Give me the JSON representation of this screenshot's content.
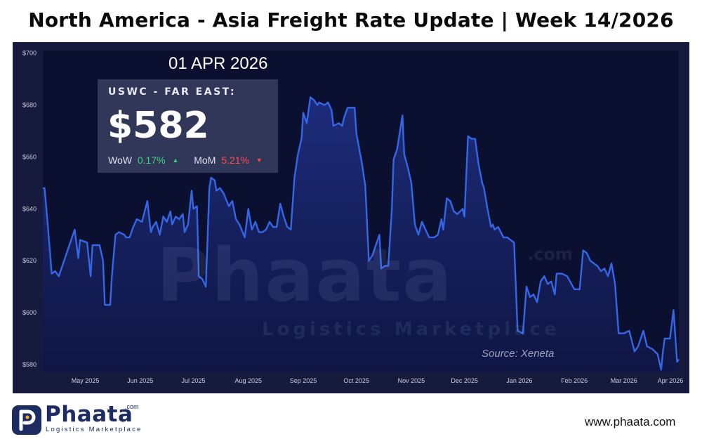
{
  "title": "North America - Asia Freight Rate Update | Week 14/2026",
  "date_label": "01 APR 2026",
  "info_box": {
    "route": "USWC - FAR EAST:",
    "price": "$582",
    "wow_label": "WoW",
    "wow_value": "0.17%",
    "wow_icon": "triangle-up-icon",
    "mom_label": "MoM",
    "mom_value": "5.21%",
    "mom_icon": "triangle-down-icon"
  },
  "source": "Source: Xeneta",
  "watermark": {
    "brand": "Phaata",
    "tagline": "Logistics Marketplace",
    "suffix": ".com"
  },
  "footer": {
    "logo_text": "Phaata",
    "logo_com": ".com",
    "logo_tagline": "Logistics Marketplace",
    "website": "www.phaata.com"
  },
  "colors": {
    "panel": "#161a3d",
    "plot_bg": "#0b1030",
    "line": "#3566e6",
    "area": "#1a2a6e",
    "positive": "#3fd07a",
    "negative": "#ff4a4a"
  },
  "chart_data": {
    "type": "area",
    "xlabel": "",
    "ylabel": "",
    "ylim": [
      577,
      701
    ],
    "xlim": [
      "2025-04-07",
      "2026-04-01"
    ],
    "grid": false,
    "y_ticks": [
      "$580",
      "$600",
      "$620",
      "$640",
      "$660",
      "$680",
      "$700"
    ],
    "y_tick_values": [
      580,
      600,
      620,
      640,
      660,
      680,
      700
    ],
    "x_ticks": [
      "May 2025",
      "Jun 2025",
      "Jul 2025",
      "Aug 2025",
      "Sep 2025",
      "Oct 2025",
      "Nov 2025",
      "Dec 2025",
      "Jan 2026",
      "Feb 2026",
      "Mar 2026",
      "Apr 2026"
    ],
    "x_tick_dates": [
      "2025-05-01",
      "2025-06-01",
      "2025-07-01",
      "2025-08-01",
      "2025-09-01",
      "2025-10-01",
      "2025-11-01",
      "2025-12-01",
      "2026-01-01",
      "2026-02-01",
      "2026-03-01",
      "2026-04-01"
    ],
    "series": [
      {
        "points": [
          [
            "2025-04-07",
            648
          ],
          [
            "2025-04-08",
            648
          ],
          [
            "2025-04-10",
            632
          ],
          [
            "2025-04-12",
            615
          ],
          [
            "2025-04-14",
            616
          ],
          [
            "2025-04-16",
            614
          ],
          [
            "2025-04-20",
            622
          ],
          [
            "2025-04-24",
            630
          ],
          [
            "2025-04-25",
            632
          ],
          [
            "2025-04-27",
            621
          ],
          [
            "2025-04-28",
            628
          ],
          [
            "2025-05-02",
            627
          ],
          [
            "2025-05-04",
            614
          ],
          [
            "2025-05-05",
            626
          ],
          [
            "2025-05-09",
            626
          ],
          [
            "2025-05-11",
            620
          ],
          [
            "2025-05-12",
            603
          ],
          [
            "2025-05-15",
            603
          ],
          [
            "2025-05-16",
            614
          ],
          [
            "2025-05-18",
            630
          ],
          [
            "2025-05-20",
            631
          ],
          [
            "2025-05-23",
            630
          ],
          [
            "2025-05-24",
            629
          ],
          [
            "2025-05-26",
            629
          ],
          [
            "2025-05-28",
            633
          ],
          [
            "2025-05-30",
            636
          ],
          [
            "2025-06-02",
            635
          ],
          [
            "2025-06-05",
            643
          ],
          [
            "2025-06-07",
            631
          ],
          [
            "2025-06-08",
            633
          ],
          [
            "2025-06-10",
            635
          ],
          [
            "2025-06-12",
            630
          ],
          [
            "2025-06-14",
            637
          ],
          [
            "2025-06-16",
            635
          ],
          [
            "2025-06-18",
            639
          ],
          [
            "2025-06-19",
            634
          ],
          [
            "2025-06-21",
            637
          ],
          [
            "2025-06-23",
            636
          ],
          [
            "2025-06-25",
            638
          ],
          [
            "2025-06-26",
            631
          ],
          [
            "2025-06-28",
            634
          ],
          [
            "2025-06-30",
            647
          ],
          [
            "2025-07-01",
            640
          ],
          [
            "2025-07-03",
            641
          ],
          [
            "2025-07-04",
            614
          ],
          [
            "2025-07-06",
            613
          ],
          [
            "2025-07-08",
            610
          ],
          [
            "2025-07-10",
            648
          ],
          [
            "2025-07-11",
            652
          ],
          [
            "2025-07-13",
            651
          ],
          [
            "2025-07-14",
            647
          ],
          [
            "2025-07-16",
            648
          ],
          [
            "2025-07-18",
            646
          ],
          [
            "2025-07-21",
            641
          ],
          [
            "2025-07-23",
            643
          ],
          [
            "2025-07-25",
            636
          ],
          [
            "2025-07-27",
            634
          ],
          [
            "2025-07-30",
            629
          ],
          [
            "2025-08-01",
            640
          ],
          [
            "2025-08-03",
            632
          ],
          [
            "2025-08-05",
            635
          ],
          [
            "2025-08-07",
            631
          ],
          [
            "2025-08-09",
            631
          ],
          [
            "2025-08-11",
            632
          ],
          [
            "2025-08-13",
            635
          ],
          [
            "2025-08-15",
            633
          ],
          [
            "2025-08-17",
            633
          ],
          [
            "2025-08-19",
            642
          ],
          [
            "2025-08-21",
            637
          ],
          [
            "2025-08-23",
            633
          ],
          [
            "2025-08-25",
            632
          ],
          [
            "2025-08-27",
            652
          ],
          [
            "2025-08-29",
            661
          ],
          [
            "2025-08-31",
            667
          ],
          [
            "2025-09-01",
            677
          ],
          [
            "2025-09-03",
            673
          ],
          [
            "2025-09-05",
            683
          ],
          [
            "2025-09-07",
            682
          ],
          [
            "2025-09-09",
            680
          ],
          [
            "2025-09-10",
            681
          ],
          [
            "2025-09-13",
            680
          ],
          [
            "2025-09-15",
            681
          ],
          [
            "2025-09-17",
            678
          ],
          [
            "2025-09-18",
            672
          ],
          [
            "2025-09-21",
            673
          ],
          [
            "2025-09-23",
            672
          ],
          [
            "2025-09-24",
            675
          ],
          [
            "2025-09-26",
            679
          ],
          [
            "2025-09-28",
            679
          ],
          [
            "2025-09-30",
            679
          ],
          [
            "2025-10-01",
            669
          ],
          [
            "2025-10-04",
            658
          ],
          [
            "2025-10-06",
            649
          ],
          [
            "2025-10-08",
            620
          ],
          [
            "2025-10-10",
            622
          ],
          [
            "2025-10-14",
            630
          ],
          [
            "2025-10-15",
            617
          ],
          [
            "2025-10-17",
            618
          ],
          [
            "2025-10-19",
            618
          ],
          [
            "2025-10-21",
            640
          ],
          [
            "2025-10-22",
            659
          ],
          [
            "2025-10-24",
            663
          ],
          [
            "2025-10-27",
            676
          ],
          [
            "2025-10-28",
            661
          ],
          [
            "2025-10-30",
            656
          ],
          [
            "2025-11-01",
            650
          ],
          [
            "2025-11-03",
            634
          ],
          [
            "2025-11-05",
            630
          ],
          [
            "2025-11-07",
            635
          ],
          [
            "2025-11-09",
            632
          ],
          [
            "2025-11-11",
            629
          ],
          [
            "2025-11-14",
            629
          ],
          [
            "2025-11-16",
            630
          ],
          [
            "2025-11-18",
            636
          ],
          [
            "2025-11-19",
            632
          ],
          [
            "2025-11-21",
            644
          ],
          [
            "2025-11-23",
            643
          ],
          [
            "2025-11-25",
            639
          ],
          [
            "2025-11-27",
            638
          ],
          [
            "2025-11-30",
            640
          ],
          [
            "2025-12-01",
            637
          ],
          [
            "2025-12-03",
            668
          ],
          [
            "2025-12-05",
            667
          ],
          [
            "2025-12-07",
            667
          ],
          [
            "2025-12-09",
            657
          ],
          [
            "2025-12-11",
            650
          ],
          [
            "2025-12-12",
            648
          ],
          [
            "2025-12-14",
            640
          ],
          [
            "2025-12-16",
            633
          ],
          [
            "2025-12-17",
            634
          ],
          [
            "2025-12-18",
            632
          ],
          [
            "2025-12-20",
            633
          ],
          [
            "2025-12-23",
            629
          ],
          [
            "2025-12-25",
            629
          ],
          [
            "2025-12-27",
            628
          ],
          [
            "2025-12-29",
            627
          ],
          [
            "2025-12-31",
            593
          ],
          [
            "2026-01-03",
            592
          ],
          [
            "2026-01-05",
            610
          ],
          [
            "2026-01-07",
            606
          ],
          [
            "2026-01-09",
            607
          ],
          [
            "2026-01-11",
            604
          ],
          [
            "2026-01-13",
            612
          ],
          [
            "2026-01-15",
            614
          ],
          [
            "2026-01-17",
            611
          ],
          [
            "2026-01-19",
            612
          ],
          [
            "2026-01-21",
            607
          ],
          [
            "2026-01-22",
            615
          ],
          [
            "2026-01-25",
            615
          ],
          [
            "2026-01-28",
            614
          ],
          [
            "2026-02-01",
            609
          ],
          [
            "2026-02-04",
            609
          ],
          [
            "2026-02-06",
            624
          ],
          [
            "2026-02-08",
            623
          ],
          [
            "2026-02-10",
            620
          ],
          [
            "2026-02-12",
            619
          ],
          [
            "2026-02-14",
            618
          ],
          [
            "2026-02-16",
            616
          ],
          [
            "2026-02-18",
            617
          ],
          [
            "2026-02-20",
            614
          ],
          [
            "2026-02-22",
            619
          ],
          [
            "2026-02-24",
            611
          ],
          [
            "2026-02-26",
            592
          ],
          [
            "2026-03-01",
            592
          ],
          [
            "2026-03-04",
            593
          ],
          [
            "2026-03-07",
            585
          ],
          [
            "2026-03-09",
            587
          ],
          [
            "2026-03-12",
            593
          ],
          [
            "2026-03-14",
            587
          ],
          [
            "2026-03-17",
            586
          ],
          [
            "2026-03-20",
            584
          ],
          [
            "2026-03-22",
            578
          ],
          [
            "2026-03-23",
            585
          ],
          [
            "2026-03-24",
            590
          ],
          [
            "2026-03-27",
            590
          ],
          [
            "2026-03-29",
            601
          ],
          [
            "2026-03-31",
            581
          ],
          [
            "2026-04-01",
            582
          ]
        ]
      }
    ]
  }
}
